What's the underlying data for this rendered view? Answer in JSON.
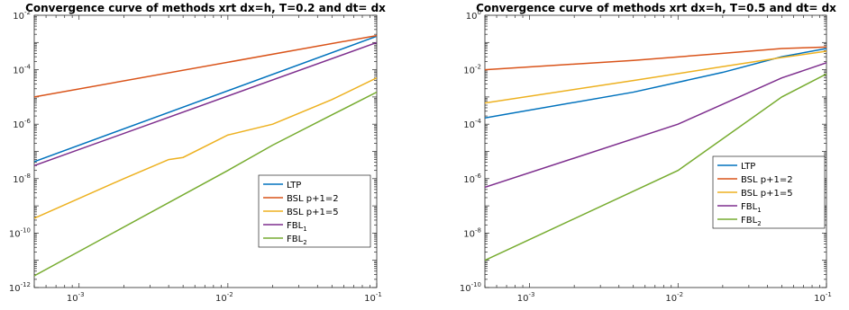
{
  "chart_data": [
    {
      "type": "line",
      "title": "Convergence curve of methods xrt dx=h, T=0.2 and dt= dx",
      "xscale": "log",
      "yscale": "log",
      "xlim": [
        0.0005,
        0.1
      ],
      "ylim": [
        1e-12,
        0.01
      ],
      "xticks": [
        {
          "value": 0.001,
          "label": "10",
          "exp": "-3"
        },
        {
          "value": 0.01,
          "label": "10",
          "exp": "-2"
        },
        {
          "value": 0.1,
          "label": "10",
          "exp": "-1"
        }
      ],
      "yticks": [
        {
          "value": 1e-12,
          "label": "10",
          "exp": "-12"
        },
        {
          "value": 1e-10,
          "label": "10",
          "exp": "-10"
        },
        {
          "value": 1e-08,
          "label": "10",
          "exp": "-8"
        },
        {
          "value": 1e-06,
          "label": "10",
          "exp": "-6"
        },
        {
          "value": 0.0001,
          "label": "10",
          "exp": "-4"
        },
        {
          "value": 0.01,
          "label": "10",
          "exp": "-2"
        }
      ],
      "legend_position": "right",
      "series": [
        {
          "name": "LTP",
          "label_base": "LTP",
          "label_sub": "",
          "color": "#0072BD",
          "points": [
            [
              0.0005,
              4.2e-08
            ],
            [
              0.1,
              0.0017
            ]
          ]
        },
        {
          "name": "BSL p+1=2",
          "label_base": "BSL p+1=2",
          "label_sub": "",
          "color": "#D95319",
          "points": [
            [
              0.0005,
              1e-05
            ],
            [
              0.1,
              0.0018
            ]
          ]
        },
        {
          "name": "BSL p+1=5",
          "label_base": "BSL p+1=5",
          "label_sub": "",
          "color": "#EDB120",
          "points": [
            [
              0.0005,
              3.5e-10
            ],
            [
              0.002,
              1e-08
            ],
            [
              0.004,
              5e-08
            ],
            [
              0.005,
              6e-08
            ],
            [
              0.01,
              4e-07
            ],
            [
              0.02,
              1e-06
            ],
            [
              0.05,
              8e-06
            ],
            [
              0.1,
              5e-05
            ]
          ]
        },
        {
          "name": "FBL1",
          "label_base": "FBL",
          "label_sub": "1",
          "color": "#7E2F8E",
          "points": [
            [
              0.0005,
              3e-08
            ],
            [
              0.1,
              0.001
            ]
          ]
        },
        {
          "name": "FBL2",
          "label_base": "FBL",
          "label_sub": "2",
          "color": "#77AC30",
          "points": [
            [
              0.0005,
              2.7e-12
            ],
            [
              0.01,
              2e-08
            ],
            [
              0.02,
              1.7e-07
            ],
            [
              0.05,
              2.2e-06
            ],
            [
              0.1,
              1.5e-05
            ]
          ]
        }
      ]
    },
    {
      "type": "line",
      "title": "Convergence curve of methods xrt dx=h, T=0.5 and dt= dx",
      "xscale": "log",
      "yscale": "log",
      "xlim": [
        0.0005,
        0.1
      ],
      "ylim": [
        1e-10,
        1
      ],
      "xticks": [
        {
          "value": 0.001,
          "label": "10",
          "exp": "-3"
        },
        {
          "value": 0.01,
          "label": "10",
          "exp": "-2"
        },
        {
          "value": 0.1,
          "label": "10",
          "exp": "-1"
        }
      ],
      "yticks": [
        {
          "value": 1e-10,
          "label": "10",
          "exp": "-10"
        },
        {
          "value": 1e-08,
          "label": "10",
          "exp": "-8"
        },
        {
          "value": 1e-06,
          "label": "10",
          "exp": "-6"
        },
        {
          "value": 0.0001,
          "label": "10",
          "exp": "-4"
        },
        {
          "value": 0.01,
          "label": "10",
          "exp": "-2"
        },
        {
          "value": 1,
          "label": "10",
          "exp": "0"
        }
      ],
      "legend_position": "right",
      "series": [
        {
          "name": "LTP",
          "label_base": "LTP",
          "label_sub": "",
          "color": "#0072BD",
          "points": [
            [
              0.0005,
              0.00017
            ],
            [
              0.005,
              0.0015
            ],
            [
              0.02,
              0.008
            ],
            [
              0.05,
              0.03
            ],
            [
              0.1,
              0.06
            ]
          ]
        },
        {
          "name": "BSL p+1=2",
          "label_base": "BSL p+1=2",
          "label_sub": "",
          "color": "#D95319",
          "points": [
            [
              0.0005,
              0.01
            ],
            [
              0.005,
              0.022
            ],
            [
              0.02,
              0.04
            ],
            [
              0.05,
              0.06
            ],
            [
              0.1,
              0.068
            ]
          ]
        },
        {
          "name": "BSL p+1=5",
          "label_base": "BSL p+1=5",
          "label_sub": "",
          "color": "#EDB120",
          "points": [
            [
              0.0005,
              0.0006
            ],
            [
              0.005,
              0.004
            ],
            [
              0.02,
              0.013
            ],
            [
              0.05,
              0.028
            ],
            [
              0.1,
              0.048
            ]
          ]
        },
        {
          "name": "FBL1",
          "label_base": "FBL",
          "label_sub": "1",
          "color": "#7E2F8E",
          "points": [
            [
              0.0005,
              4.8e-07
            ],
            [
              0.01,
              0.0001
            ],
            [
              0.05,
              0.005
            ],
            [
              0.1,
              0.018
            ]
          ]
        },
        {
          "name": "FBL2",
          "label_base": "FBL",
          "label_sub": "2",
          "color": "#77AC30",
          "points": [
            [
              0.0005,
              1e-09
            ],
            [
              0.01,
              2e-06
            ],
            [
              0.05,
              0.001
            ],
            [
              0.1,
              0.007
            ]
          ]
        }
      ]
    }
  ]
}
